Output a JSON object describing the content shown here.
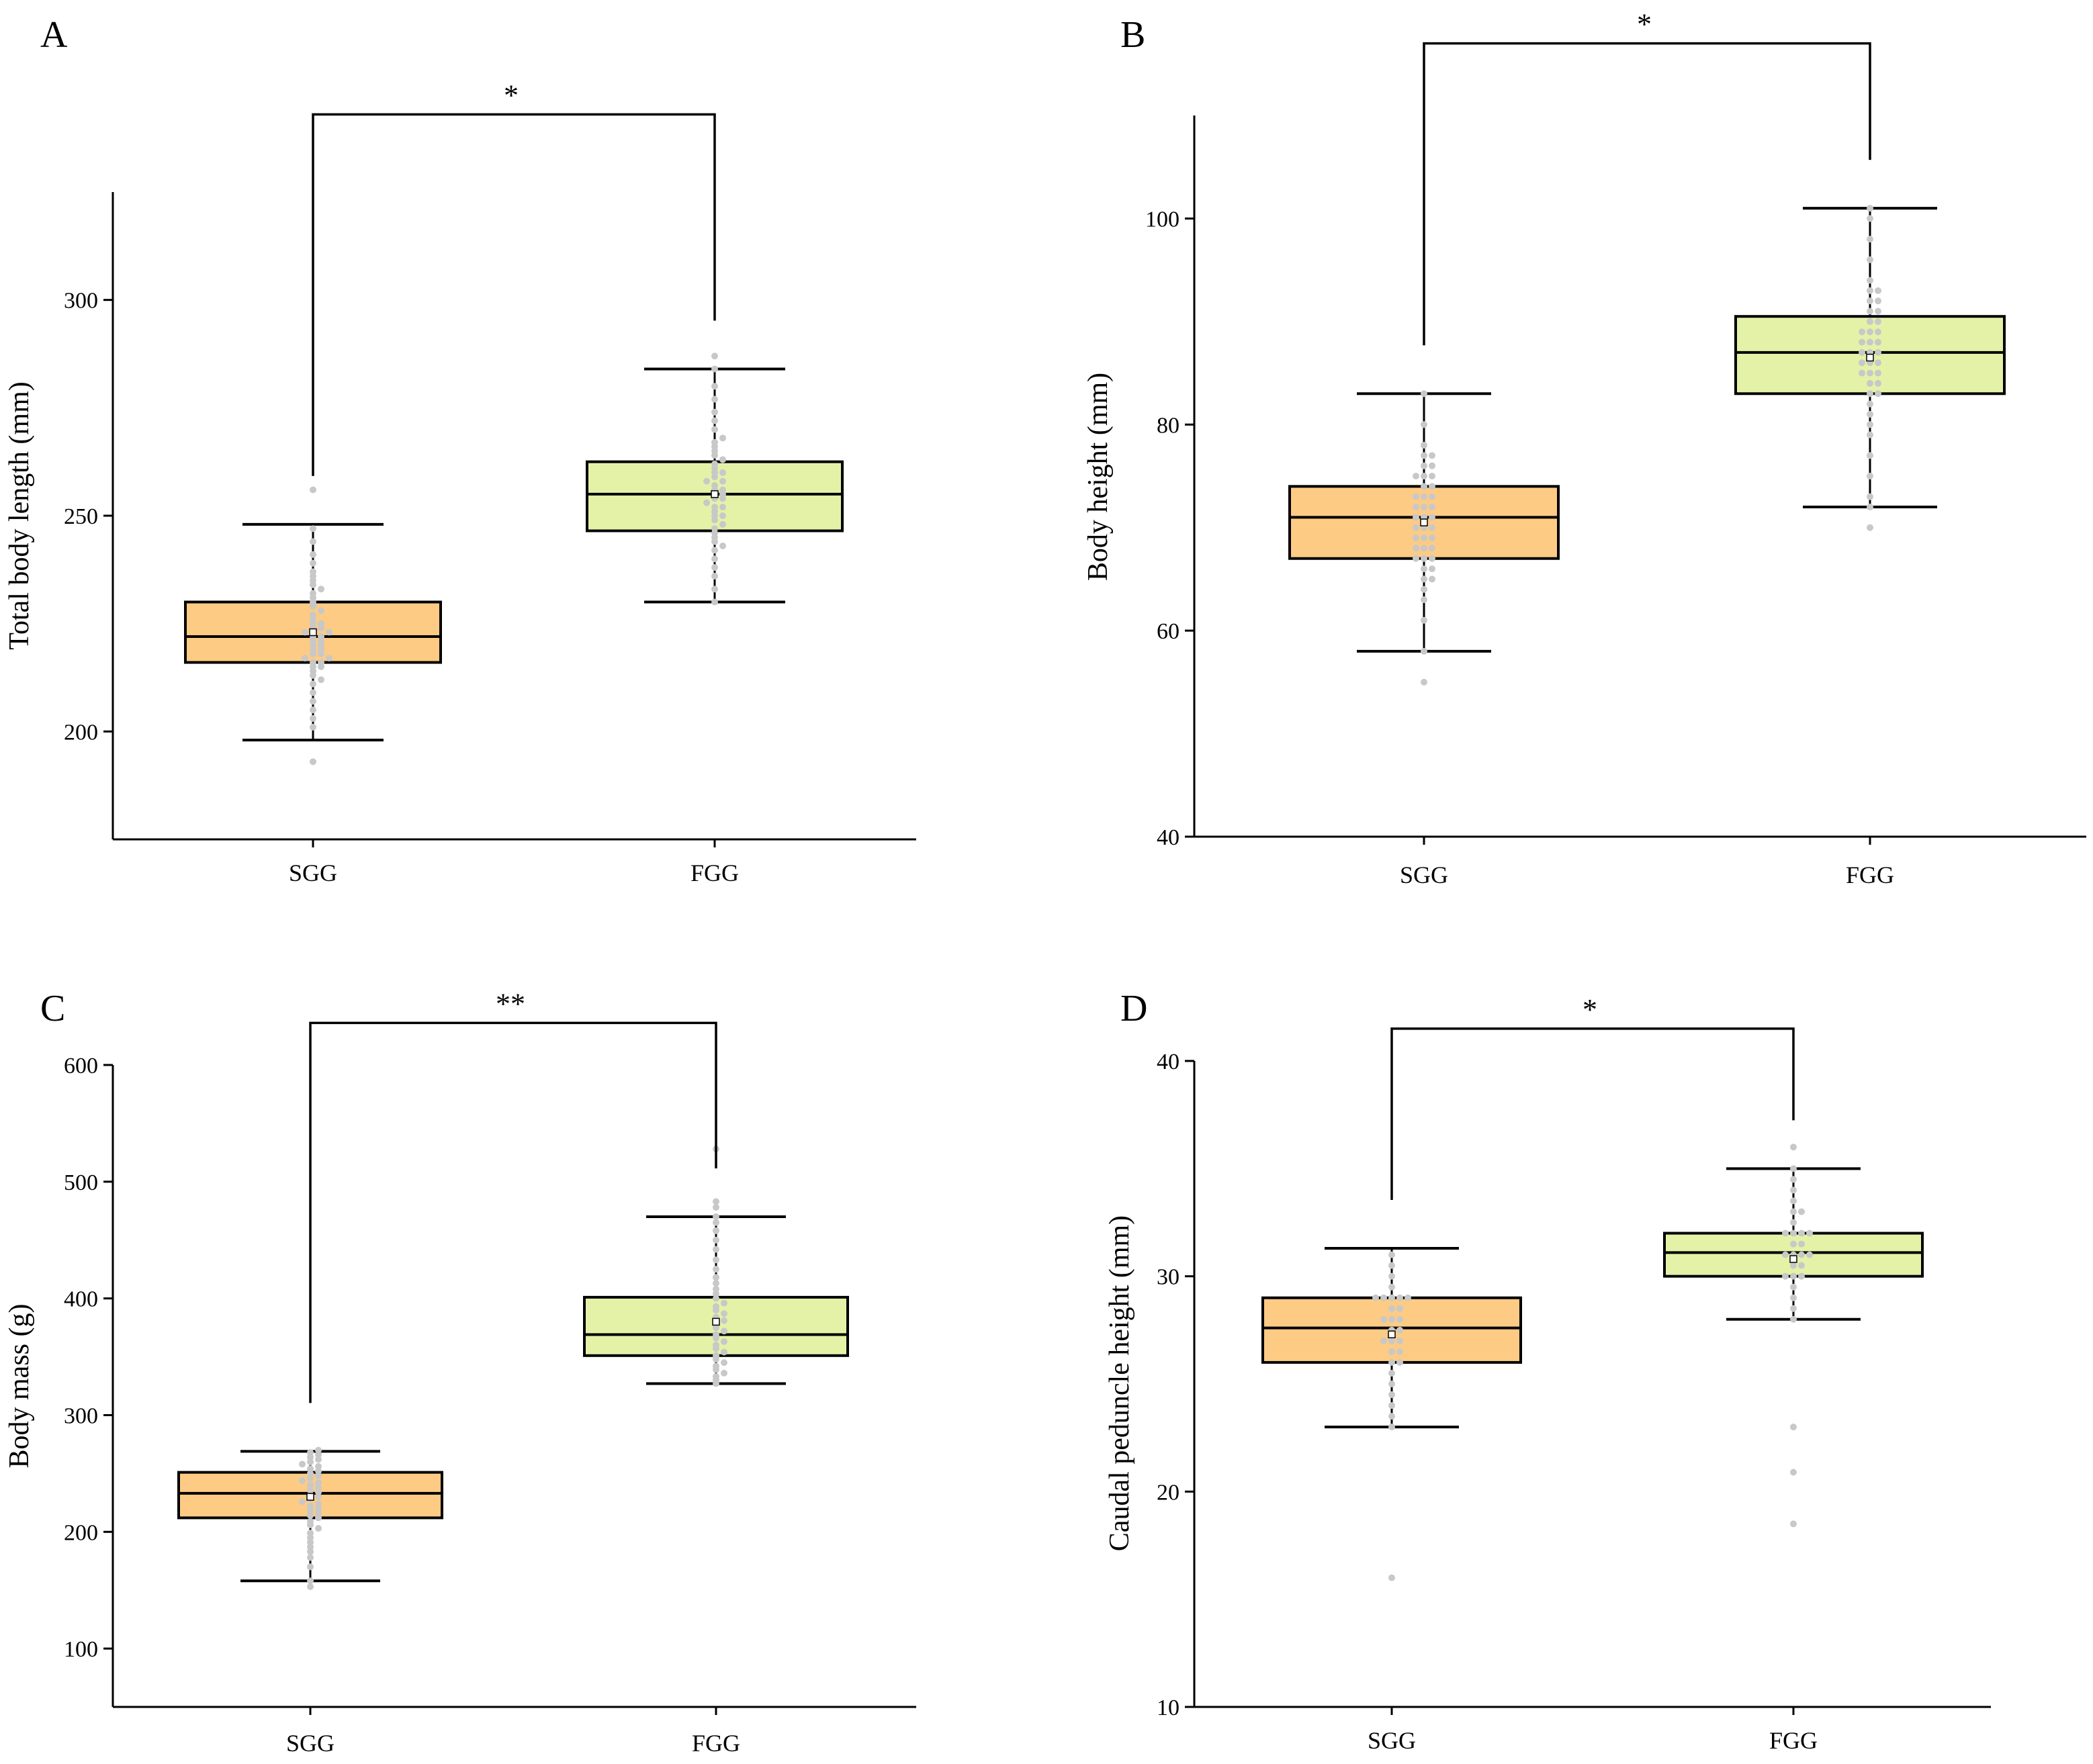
{
  "figure_title": "",
  "colors": {
    "sgg_box": "#FDCB84",
    "fgg_box": "#E4F2A8",
    "points": "#C8C8C8",
    "line": "#000000"
  },
  "chart_data": [
    {
      "panel": "A",
      "type": "box",
      "title": "",
      "xlabel": "",
      "ylabel": "Total body length (mm)",
      "ylim": [
        175,
        325
      ],
      "yticks": [
        200,
        250,
        300
      ],
      "categories": [
        "SGG",
        "FGG"
      ],
      "boxes": [
        {
          "name": "SGG",
          "whisker_low": 198,
          "q1": 216,
          "median": 222,
          "mean": 223,
          "q3": 230,
          "whisker_high": 248,
          "points": [
            193,
            201,
            203,
            205,
            207,
            209,
            211,
            212,
            213,
            214,
            215,
            215,
            216,
            216,
            217,
            217,
            218,
            218,
            219,
            219,
            220,
            220,
            221,
            221,
            222,
            222,
            223,
            223,
            224,
            224,
            225,
            225,
            226,
            227,
            228,
            229,
            230,
            231,
            232,
            233,
            234,
            235,
            236,
            237,
            239,
            241,
            244,
            247,
            256
          ]
        },
        {
          "name": "FGG",
          "whisker_low": 230,
          "q1": 246.5,
          "median": 255,
          "mean": 255,
          "q3": 262.5,
          "whisker_high": 284,
          "points": [
            230,
            233,
            236,
            238,
            240,
            242,
            243,
            244,
            245,
            246,
            247,
            248,
            249,
            250,
            250,
            251,
            252,
            252,
            253,
            254,
            254,
            255,
            255,
            256,
            256,
            257,
            258,
            258,
            259,
            260,
            260,
            261,
            262,
            263,
            264,
            265,
            266,
            267,
            268,
            270,
            272,
            274,
            277,
            280,
            284,
            287
          ]
        }
      ],
      "significance": {
        "label": "*",
        "y": 343
      }
    },
    {
      "panel": "B",
      "type": "box",
      "title": "",
      "xlabel": "",
      "ylabel": "Body height (mm)",
      "ylim": [
        40,
        110
      ],
      "yticks": [
        40,
        60,
        80,
        100
      ],
      "categories": [
        "SGG",
        "FGG"
      ],
      "boxes": [
        {
          "name": "SGG",
          "whisker_low": 58,
          "q1": 67,
          "median": 71,
          "mean": 70.5,
          "q3": 74,
          "whisker_high": 83,
          "points": [
            55,
            58,
            61,
            63,
            64,
            65,
            65,
            66,
            66,
            67,
            67,
            67,
            68,
            68,
            68,
            69,
            69,
            69,
            70,
            70,
            70,
            71,
            71,
            71,
            72,
            72,
            72,
            73,
            73,
            73,
            74,
            74,
            75,
            75,
            75,
            76,
            76,
            77,
            77,
            78,
            80,
            83
          ]
        },
        {
          "name": "FGG",
          "whisker_low": 72,
          "q1": 83,
          "median": 87,
          "mean": 86.5,
          "q3": 90.5,
          "whisker_high": 101,
          "points": [
            70,
            72,
            73,
            75,
            77,
            79,
            80,
            81,
            82,
            83,
            83,
            84,
            84,
            85,
            85,
            85,
            86,
            86,
            86,
            87,
            87,
            87,
            88,
            88,
            88,
            89,
            89,
            89,
            90,
            90,
            91,
            91,
            92,
            92,
            93,
            93,
            94,
            96,
            98,
            100,
            101
          ]
        }
      ],
      "significance": {
        "label": "*",
        "y": 117
      }
    },
    {
      "panel": "C",
      "type": "box",
      "title": "",
      "xlabel": "",
      "ylabel": "Body mass (g)",
      "ylim": [
        50,
        600
      ],
      "yticks": [
        100,
        200,
        300,
        400,
        500,
        600
      ],
      "categories": [
        "SGG",
        "FGG"
      ],
      "boxes": [
        {
          "name": "SGG",
          "whisker_low": 158,
          "q1": 212,
          "median": 233,
          "mean": 230,
          "q3": 251,
          "whisker_high": 269,
          "points": [
            153,
            158,
            170,
            178,
            183,
            187,
            191,
            195,
            199,
            203,
            206,
            209,
            212,
            214,
            216,
            218,
            220,
            222,
            224,
            226,
            228,
            230,
            232,
            234,
            236,
            238,
            240,
            242,
            244,
            246,
            248,
            250,
            252,
            254,
            256,
            258,
            260,
            262,
            264,
            266,
            268,
            270
          ]
        },
        {
          "name": "FGG",
          "whisker_low": 327,
          "q1": 351,
          "median": 369,
          "mean": 380,
          "q3": 401,
          "whisker_high": 470,
          "points": [
            327,
            330,
            333,
            336,
            339,
            342,
            345,
            348,
            351,
            354,
            357,
            360,
            363,
            366,
            369,
            372,
            375,
            378,
            381,
            384,
            387,
            390,
            393,
            396,
            400,
            404,
            408,
            413,
            418,
            425,
            433,
            442,
            450,
            458,
            465,
            470,
            478,
            483,
            528
          ]
        }
      ],
      "significance": {
        "label": "**",
        "y": 636
      }
    },
    {
      "panel": "D",
      "type": "box",
      "title": "",
      "xlabel": "",
      "ylabel": "Caudal peduncle height (mm)",
      "ylim": [
        10,
        40
      ],
      "yticks": [
        10,
        20,
        30,
        40
      ],
      "categories": [
        "SGG",
        "FGG"
      ],
      "boxes": [
        {
          "name": "SGG",
          "whisker_low": 23,
          "q1": 26,
          "median": 27.6,
          "mean": 27.3,
          "q3": 29,
          "whisker_high": 31.3,
          "points": [
            16,
            23,
            23.5,
            24,
            24.5,
            25,
            25.5,
            26,
            26,
            26.5,
            26.5,
            27,
            27,
            27,
            27.5,
            27.5,
            28,
            28,
            28,
            28.5,
            28.5,
            29,
            29,
            29,
            29,
            29,
            29.5,
            30,
            30.5,
            31
          ]
        },
        {
          "name": "FGG",
          "whisker_low": 28,
          "q1": 30,
          "median": 31.1,
          "mean": 30.8,
          "q3": 32,
          "whisker_high": 35,
          "points": [
            18.5,
            20.9,
            23,
            28,
            28.5,
            29,
            29.5,
            30,
            30,
            30,
            30.5,
            30.5,
            31,
            31,
            31,
            31,
            31.5,
            31.5,
            32,
            32,
            32,
            32,
            32.5,
            33,
            33,
            33.5,
            34,
            34.5,
            35,
            36
          ]
        }
      ],
      "significance": {
        "label": "*",
        "y": 41.5
      }
    }
  ]
}
